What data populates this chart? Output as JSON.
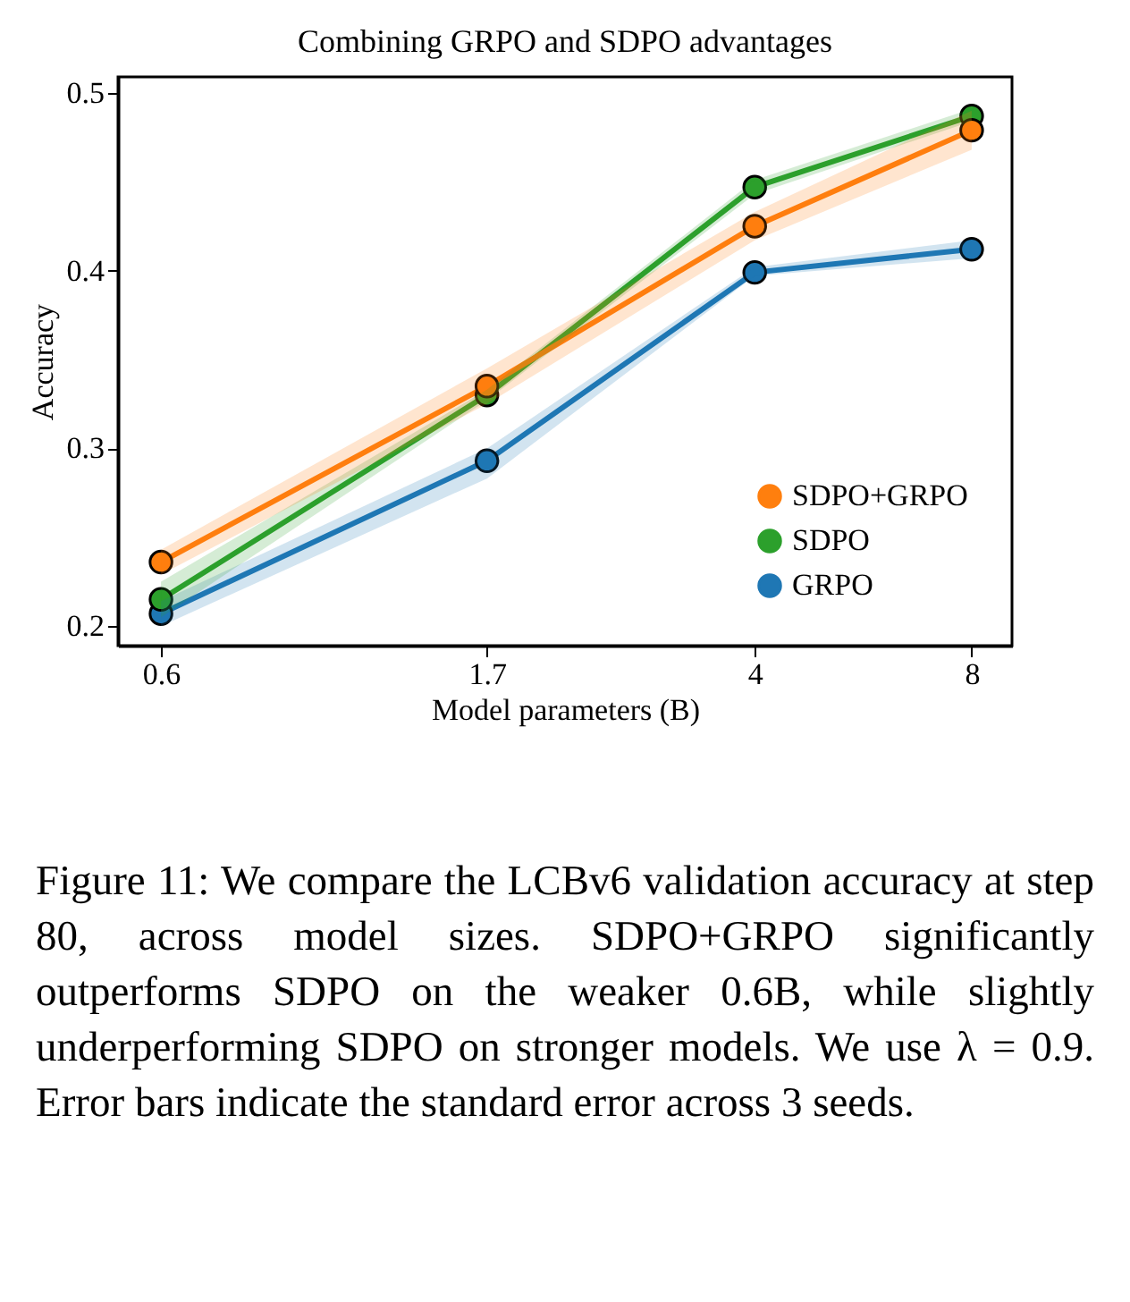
{
  "chart_data": {
    "type": "line",
    "title": "Combining GRPO and SDPO advantages",
    "xlabel": "Model parameters (B)",
    "ylabel": "Accuracy",
    "x": [
      0.6,
      1.7,
      4,
      8
    ],
    "log": "x",
    "xlim": [
      0.523,
      9.1
    ],
    "xticks": [
      0.6,
      1.7,
      4,
      8
    ],
    "ylim": [
      0.189,
      0.509
    ],
    "yticks": [
      0.2,
      0.3,
      0.4,
      0.5
    ],
    "grid": false,
    "legend": "bottom right",
    "marker": "circle",
    "line_style": "solid",
    "series": [
      {
        "name": "SDPO+GRPO",
        "color": "#ff7f0e",
        "values": [
          0.236,
          0.335,
          0.425,
          0.479
        ],
        "lower": [
          0.229,
          0.325,
          0.417,
          0.468
        ],
        "upper": [
          0.243,
          0.345,
          0.433,
          0.49
        ]
      },
      {
        "name": "SDPO",
        "color": "#2ca02c",
        "values": [
          0.215,
          0.33,
          0.447,
          0.487
        ],
        "lower": [
          0.205,
          0.327,
          0.443,
          0.484
        ],
        "upper": [
          0.225,
          0.333,
          0.451,
          0.491
        ]
      },
      {
        "name": "GRPO",
        "color": "#1f77b4",
        "values": [
          0.207,
          0.293,
          0.399,
          0.412
        ],
        "lower": [
          0.2,
          0.283,
          0.397,
          0.407
        ],
        "upper": [
          0.214,
          0.3,
          0.402,
          0.417
        ]
      }
    ],
    "annotations": [
      "Figure 11: We compare the LCBv6 validation accuracy at step 80, across model sizes. SDPO+GRPO significantly outperforms SDPO on the weaker 0.6B, while slightly underperforming SDPO on stronger models. We use λ = 0.9. Error bars indicate the standard error across 3 seeds."
    ]
  }
}
